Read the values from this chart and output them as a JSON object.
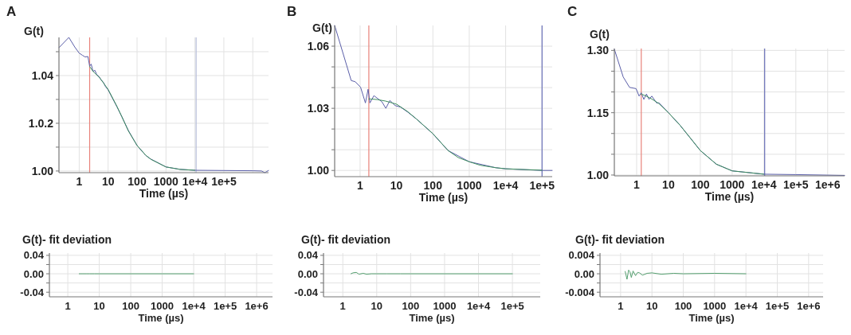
{
  "chart_data": [
    {
      "type": "line",
      "title": "A",
      "ylabel": "G(t)",
      "xlabel": "Time (µs)",
      "log": "x",
      "grid": true,
      "xlim": [
        0.2,
        3500000
      ],
      "xticks": [
        1,
        10,
        100,
        1000,
        {
          "value": 10000,
          "label": "1e+4"
        },
        {
          "value": 100000,
          "label": "1e+5"
        },
        {
          "value": 1000000,
          "label": null
        }
      ],
      "ylim": [
        0.9993,
        1.056
      ],
      "yticks": [
        {
          "value": 1.0,
          "label": "1.00"
        },
        {
          "value": 1.01,
          "label": null
        },
        {
          "value": 1.02,
          "label": "1.0.2"
        },
        {
          "value": 1.03,
          "label": null
        },
        {
          "value": 1.04,
          "label": "1.04"
        },
        {
          "value": 1.05,
          "label": null
        }
      ],
      "ref_lines": [
        {
          "axis": "x",
          "value": 2.3,
          "color": "#e8827a"
        },
        {
          "axis": "x",
          "value": 11000,
          "color": "#b4bcd8"
        }
      ],
      "series": [
        {
          "color": "#5a5ea8",
          "x": [
            0.2,
            0.44,
            0.7,
            1,
            1.3,
            1.6,
            2,
            2.3,
            2.6,
            3,
            3.5,
            4,
            5,
            5.5,
            7,
            8,
            10,
            20,
            30,
            50,
            100,
            200,
            300,
            1000,
            3000,
            10000,
            100000,
            1000000,
            2000000,
            2600000,
            3500000
          ],
          "values": [
            1.0517,
            1.056,
            1.052,
            1.0494,
            1.0485,
            1.0478,
            1.048,
            1.044,
            1.0448,
            1.0418,
            1.0422,
            1.0405,
            1.0394,
            1.0385,
            1.037,
            1.0355,
            1.034,
            1.027,
            1.0227,
            1.017,
            1.0107,
            1.0065,
            1.005,
            1.0017,
            1.0007,
            1.0003,
            1.0002,
            1.0001,
            1.0,
            0.9993,
            1.0002
          ]
        },
        {
          "color": "#3e8e5e",
          "x": [
            2.3,
            3,
            5,
            7,
            10,
            20,
            30,
            50,
            100,
            200,
            300,
            1000,
            3000,
            10000
          ],
          "values": [
            1.0438,
            1.0418,
            1.0392,
            1.0368,
            1.0342,
            1.0272,
            1.0227,
            1.0168,
            1.0107,
            1.0066,
            1.0049,
            1.0017,
            1.0007,
            1.0003
          ]
        }
      ]
    },
    {
      "type": "line",
      "title": "B",
      "ylabel": "G(t)",
      "xlabel": "Time (µs)",
      "log": "x",
      "grid": true,
      "xlim": [
        0.2,
        190000
      ],
      "xticks": [
        1,
        10,
        100,
        1000,
        {
          "value": 10000,
          "label": "1e+4"
        },
        {
          "value": 100000,
          "label": "1e+5"
        }
      ],
      "ylim": [
        0.997,
        1.07
      ],
      "yticks": [
        {
          "value": 1.0,
          "label": "1.00"
        },
        {
          "value": 1.01,
          "label": null
        },
        {
          "value": 1.02,
          "label": null
        },
        1.03,
        {
          "value": 1.04,
          "label": null
        },
        {
          "value": 1.05,
          "label": null
        },
        1.06
      ],
      "ref_lines": [
        {
          "axis": "x",
          "value": 1.74,
          "color": "#e8827a"
        },
        {
          "axis": "x",
          "value": 100000,
          "color": "#6a70b8"
        }
      ],
      "series": [
        {
          "color": "#5a5ea8",
          "x": [
            0.2,
            0.57,
            0.74,
            1.03,
            1.4,
            1.66,
            1.86,
            2.4,
            2.9,
            3.96,
            5.1,
            6.6,
            9.2,
            12.9,
            21,
            35,
            97,
            262,
            1000,
            5400,
            10000,
            100000,
            190000
          ],
          "values": [
            1.07,
            1.0434,
            1.0428,
            1.0402,
            1.0326,
            1.0392,
            1.0326,
            1.0361,
            1.035,
            1.0332,
            1.03,
            1.0338,
            1.0313,
            1.0306,
            1.028,
            1.0249,
            1.0179,
            1.0096,
            1.0042,
            1.0013,
            1.0008,
            1.0,
            1.0
          ]
        },
        {
          "color": "#3e8e5e",
          "x": [
            1.74,
            2,
            3,
            5,
            10,
            20,
            35,
            50,
            100,
            262,
            500,
            1000,
            2000,
            5400,
            10000,
            100000
          ],
          "values": [
            1.0345,
            1.0345,
            1.0342,
            1.0335,
            1.032,
            1.0285,
            1.0249,
            1.0225,
            1.0178,
            1.0096,
            1.0062,
            1.0042,
            1.0025,
            1.0013,
            1.0008,
            1.0001
          ]
        }
      ]
    },
    {
      "type": "line",
      "title": "C",
      "ylabel": "G(t)",
      "xlabel": "Time (µs)",
      "log": "x",
      "grid": true,
      "xlim": [
        0.2,
        3400000
      ],
      "xticks": [
        1,
        10,
        100,
        1000,
        {
          "value": 10000,
          "label": "1e+4"
        },
        {
          "value": 100000,
          "label": "1e+5"
        },
        {
          "value": 1000000,
          "label": "1e+6"
        }
      ],
      "ylim": [
        0.998,
        1.3045
      ],
      "yticks": [
        {
          "value": 1.0,
          "label": "1.00"
        },
        {
          "value": 1.05,
          "label": null
        },
        {
          "value": 1.1,
          "label": null
        },
        1.15,
        {
          "value": 1.2,
          "label": null
        },
        {
          "value": 1.25,
          "label": null
        },
        {
          "value": 1.3,
          "label": "1.30"
        }
      ],
      "ref_lines": [
        {
          "axis": "x",
          "value": 1.4,
          "color": "#e8827a"
        },
        {
          "axis": "x",
          "value": 10500,
          "color": "#6a70b8"
        }
      ],
      "series": [
        {
          "color": "#5a5ea8",
          "x": [
            0.2,
            0.38,
            0.6,
            0.96,
            1.2,
            1.4,
            1.69,
            2.04,
            2.45,
            3,
            4.3,
            5,
            10,
            23,
            100,
            320,
            1000,
            10000,
            100000,
            3400000
          ],
          "values": [
            1.303,
            1.236,
            1.211,
            1.208,
            1.19,
            1.198,
            1.182,
            1.195,
            1.182,
            1.19,
            1.173,
            1.174,
            1.15,
            1.12,
            1.059,
            1.026,
            1.01,
            1.002,
            1.001,
            0.999
          ]
        },
        {
          "color": "#3e8e5e",
          "x": [
            1.4,
            2,
            3,
            5,
            10,
            23,
            50,
            100,
            320,
            1000,
            10000
          ],
          "values": [
            1.195,
            1.19,
            1.183,
            1.172,
            1.15,
            1.12,
            1.088,
            1.059,
            1.026,
            1.01,
            1.002
          ]
        }
      ]
    },
    {
      "type": "line",
      "title": "G(t)- fit deviation",
      "xlabel": "Time (µs)",
      "log": "x",
      "grid": true,
      "xlim": [
        0.26,
        3200000
      ],
      "xticks": [
        1,
        10,
        100,
        1000,
        {
          "value": 10000,
          "label": "1e+4"
        },
        {
          "value": 100000,
          "label": "1e+5"
        },
        {
          "value": 1000000,
          "label": "1e+6"
        }
      ],
      "ylim": [
        -0.05,
        0.045
      ],
      "yticks": [
        -0.04,
        {
          "value": -0.02,
          "label": null
        },
        {
          "value": 0,
          "label": "0.00"
        },
        {
          "value": 0.02,
          "label": null
        },
        0.04
      ],
      "series": [
        {
          "color": "#55a070",
          "x": [
            2.3,
            3,
            4,
            5,
            7,
            10,
            100,
            1000,
            10000
          ],
          "values": [
            0,
            0,
            0,
            0,
            0,
            0,
            0,
            0,
            0
          ]
        }
      ]
    },
    {
      "type": "line",
      "title": "G(t)- fit deviation",
      "xlabel": "Time (µs)",
      "log": "x",
      "grid": true,
      "xlim": [
        0.27,
        660000
      ],
      "xticks": [
        1,
        10,
        100,
        1000,
        {
          "value": 10000,
          "label": "1e+4"
        },
        {
          "value": 100000,
          "label": "1e+5"
        }
      ],
      "ylim": [
        -0.05,
        0.045
      ],
      "yticks": [
        -0.04,
        {
          "value": -0.02,
          "label": null
        },
        {
          "value": 0,
          "label": "0.00"
        },
        {
          "value": 0.02,
          "label": null
        },
        0.04
      ],
      "series": [
        {
          "color": "#55a070",
          "x": [
            1.74,
            2,
            2.5,
            3,
            4,
            5,
            7,
            10,
            20,
            50,
            100,
            1000,
            10000,
            100000
          ],
          "values": [
            0,
            0.002,
            0.003,
            -0.001,
            0.001,
            -0.001,
            0,
            0,
            0,
            0,
            0,
            0,
            0,
            0
          ]
        }
      ]
    },
    {
      "type": "line",
      "title": "G(t)- fit deviation",
      "xlabel": "Time (µs)",
      "log": "x",
      "grid": true,
      "xlim": [
        0.22,
        2900000
      ],
      "xticks": [
        1,
        10,
        100,
        1000,
        {
          "value": 10000,
          "label": "1e+4"
        },
        {
          "value": 100000,
          "label": "1e+5"
        },
        {
          "value": 1000000,
          "label": "1e+6"
        }
      ],
      "ylim": [
        -0.005,
        0.0045
      ],
      "yticks": [
        -0.004,
        {
          "value": -0.002,
          "label": null
        },
        {
          "value": 0,
          "label": "0.00"
        },
        {
          "value": 0.002,
          "label": null
        },
        0.004
      ],
      "series": [
        {
          "color": "#55a070",
          "x": [
            1.4,
            1.6,
            1.8,
            2,
            2.2,
            2.5,
            3,
            3.5,
            4,
            5,
            7,
            10,
            20,
            50,
            100,
            1000,
            10000
          ],
          "values": [
            0.0005,
            -0.0012,
            0.0008,
            0.0004,
            -0.0008,
            0.0006,
            -0.0004,
            0.0003,
            0.0002,
            -0.0003,
            0.0001,
            0.0002,
            -0.0001,
            0.0001,
            0,
            0.0001,
            0
          ]
        }
      ]
    }
  ]
}
